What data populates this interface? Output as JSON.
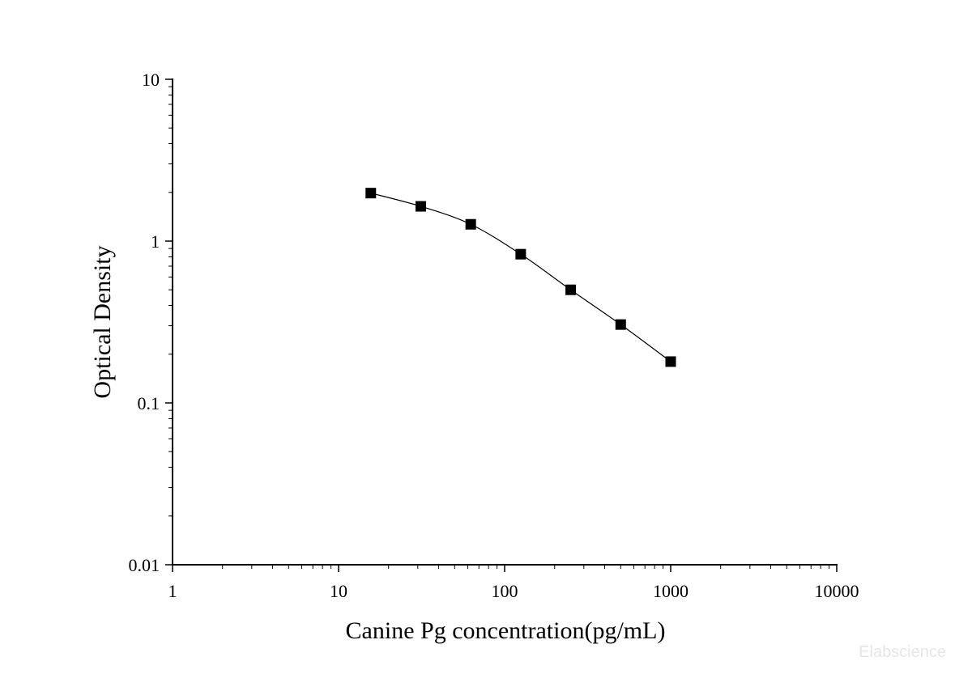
{
  "chart_data": {
    "type": "scatter",
    "title": "",
    "xlabel": "Canine Pg concentration(pg/mL)",
    "ylabel": "Optical Density",
    "xscale": "log",
    "yscale": "log",
    "xlim": [
      1,
      10000
    ],
    "ylim": [
      0.01,
      10
    ],
    "x_ticks": [
      "1",
      "10",
      "100",
      "1000",
      "10000"
    ],
    "y_ticks": [
      "10",
      "1",
      "0.1",
      "0.01"
    ],
    "grid": false,
    "marker": "square",
    "connected_by_line": true,
    "series": [
      {
        "x": [
          15.63,
          31.25,
          62.5,
          125,
          250,
          500,
          1000
        ],
        "y": [
          1.98,
          1.64,
          1.27,
          0.83,
          0.5,
          0.305,
          0.18
        ]
      }
    ]
  },
  "watermark": "Elabscience",
  "colors": {
    "axis": "#000000",
    "marker": "#000000",
    "line": "#000000",
    "watermark": "#e6e6e6"
  }
}
